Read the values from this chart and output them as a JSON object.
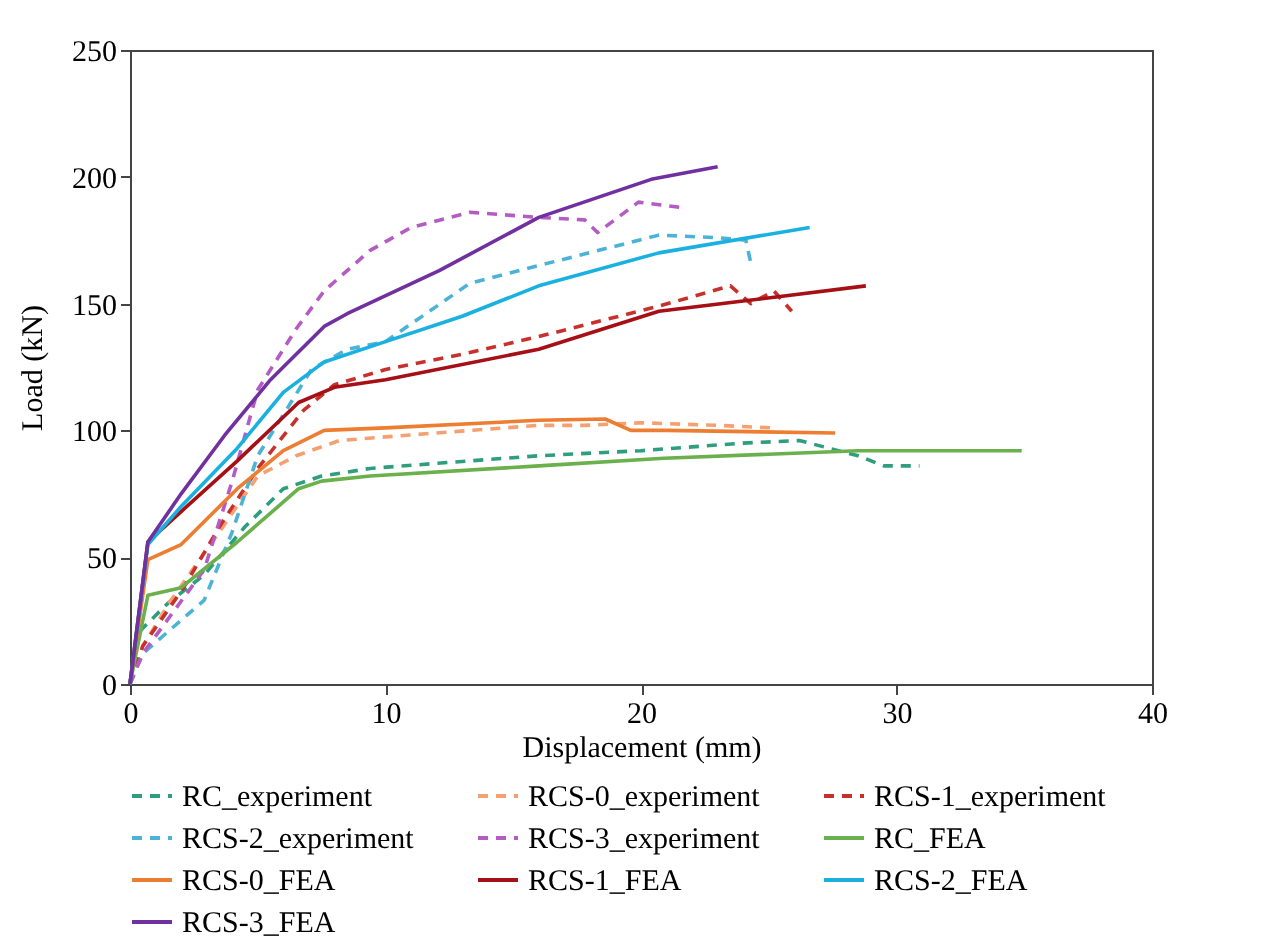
{
  "chart_data": {
    "type": "line",
    "xlabel": "Displacement (mm)",
    "ylabel": "Load (kN)",
    "xlim": [
      0,
      40
    ],
    "xticks": [
      0,
      10,
      20,
      30,
      40
    ],
    "ylim": [
      0,
      250
    ],
    "yticks": [
      0,
      50,
      100,
      150,
      200,
      250
    ],
    "grid": false,
    "legend": "bottom",
    "marker": "none",
    "series": [
      {
        "name": "RC_experiment",
        "color": "#2e9e7e",
        "line_style": "dashed",
        "x": [
          0,
          0.3,
          1.5,
          2.9,
          4.5,
          6,
          7.5,
          9.4,
          12,
          16,
          20,
          24,
          26.2,
          28.5,
          29.5,
          30.9
        ],
        "values": [
          0,
          20,
          32,
          43,
          62,
          77,
          82,
          85,
          87,
          90,
          92,
          95,
          96,
          90,
          86,
          86
        ]
      },
      {
        "name": "RCS-0_experiment",
        "color": "#f4a070",
        "line_style": "dashed",
        "x": [
          0,
          0.5,
          1.6,
          3.5,
          5,
          6.5,
          8.2,
          12,
          16,
          17.8,
          20,
          23,
          25.1
        ],
        "values": [
          0,
          15,
          33,
          60,
          82,
          90,
          96,
          99,
          102,
          102,
          103,
          102,
          101
        ]
      },
      {
        "name": "RCS-1_experiment",
        "color": "#c8302c",
        "line_style": "dashed",
        "x": [
          0,
          0.5,
          2.1,
          3.5,
          5,
          6.8,
          8,
          10,
          13,
          16,
          20.7,
          23.5,
          24.3,
          25.2,
          25.9
        ],
        "values": [
          0,
          15,
          38,
          62,
          85,
          108,
          118,
          124,
          130,
          137,
          149,
          157,
          150,
          155,
          147
        ]
      },
      {
        "name": "RCS-2_experiment",
        "color": "#4db3d6",
        "line_style": "dashed",
        "x": [
          0,
          0.5,
          2.9,
          4,
          5,
          7.1,
          8.5,
          10,
          13.3,
          16,
          20.7,
          23,
          24.1,
          24.3
        ],
        "values": [
          0,
          12,
          33,
          60,
          90,
          124,
          132,
          135,
          158,
          165,
          177,
          176,
          175,
          166
        ]
      },
      {
        "name": "RCS-3_experiment",
        "color": "#b45cc4",
        "line_style": "dashed",
        "x": [
          0,
          0.5,
          2.9,
          4,
          5,
          6.5,
          7.6,
          9.4,
          11,
          13.3,
          16,
          17.8,
          18.3,
          19.9,
          21.5
        ],
        "values": [
          0,
          12,
          45,
          80,
          116,
          140,
          155,
          171,
          180,
          186,
          184,
          183,
          178,
          190,
          188
        ]
      },
      {
        "name": "RC_FEA",
        "color": "#6ab04c",
        "line_style": "solid",
        "x": [
          0,
          0.7,
          2,
          4.2,
          6.6,
          7.5,
          9.4,
          16,
          20.9,
          28.5,
          34.9
        ],
        "values": [
          0,
          35,
          38,
          56,
          77,
          80,
          82,
          86,
          89,
          92,
          92
        ]
      },
      {
        "name": "RCS-0_FEA",
        "color": "#ed7d31",
        "line_style": "solid",
        "x": [
          0,
          0.7,
          2,
          4.2,
          6,
          7.6,
          10,
          16,
          18.6,
          19.6,
          21,
          27.6
        ],
        "values": [
          0,
          49,
          55,
          77,
          92,
          100,
          101,
          104,
          104.5,
          100,
          100,
          99
        ]
      },
      {
        "name": "RCS-1_FEA",
        "color": "#a50f15",
        "line_style": "solid",
        "x": [
          0,
          0.7,
          2,
          4.2,
          6.6,
          8,
          10,
          16,
          20.7,
          24,
          28.8
        ],
        "values": [
          0,
          56,
          68,
          88,
          111,
          117,
          120,
          132,
          147,
          151,
          157
        ]
      },
      {
        "name": "RCS-2_FEA",
        "color": "#1ab0e0",
        "line_style": "solid",
        "x": [
          0,
          0.7,
          2,
          4.2,
          6,
          7.6,
          10,
          13,
          16,
          20.7,
          26.6
        ],
        "values": [
          0,
          55,
          70,
          93,
          115,
          127,
          135,
          145,
          157,
          170,
          180
        ]
      },
      {
        "name": "RCS-3_FEA",
        "color": "#7030a0",
        "line_style": "solid",
        "x": [
          0,
          0.7,
          2,
          3.7,
          5.5,
          7.6,
          8.5,
          12.1,
          16,
          20.4,
          23
        ],
        "values": [
          0,
          56,
          75,
          98,
          120,
          141,
          146,
          163,
          184,
          199,
          204
        ]
      }
    ]
  }
}
